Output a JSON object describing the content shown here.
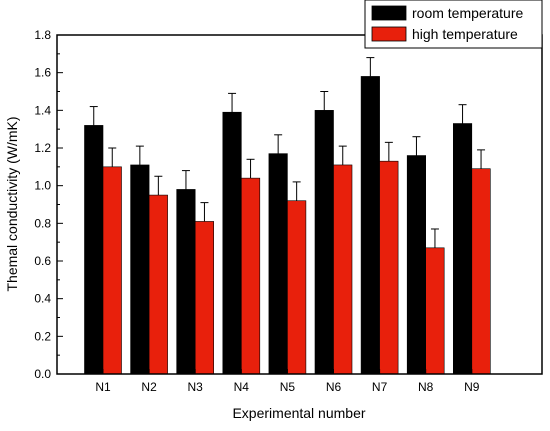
{
  "chart_data": {
    "type": "bar",
    "xlabel": "Experimental number",
    "ylabel": "Themal conductivity (W/mK)",
    "categories": [
      "N1",
      "N2",
      "N3",
      "N4",
      "N5",
      "N6",
      "N7",
      "N8",
      "N9"
    ],
    "series": [
      {
        "name": "room temperature",
        "color": "#000000",
        "values": [
          1.32,
          1.11,
          0.98,
          1.39,
          1.17,
          1.4,
          1.58,
          1.16,
          1.33
        ],
        "errors": [
          0.1,
          0.1,
          0.1,
          0.1,
          0.1,
          0.1,
          0.1,
          0.1,
          0.1
        ]
      },
      {
        "name": "high temperature",
        "color": "#e8200c",
        "values": [
          1.1,
          0.95,
          0.81,
          1.04,
          0.92,
          1.11,
          1.13,
          0.67,
          1.09
        ],
        "errors": [
          0.1,
          0.1,
          0.1,
          0.1,
          0.1,
          0.1,
          0.1,
          0.1,
          0.1
        ]
      }
    ],
    "ylim": [
      0,
      1.8
    ],
    "yticks": [
      "0.0",
      "0.2",
      "0.4",
      "0.6",
      "0.8",
      "1.0",
      "1.2",
      "1.4",
      "1.6",
      "1.8"
    ],
    "grid": false,
    "legend_position": "top-right"
  }
}
